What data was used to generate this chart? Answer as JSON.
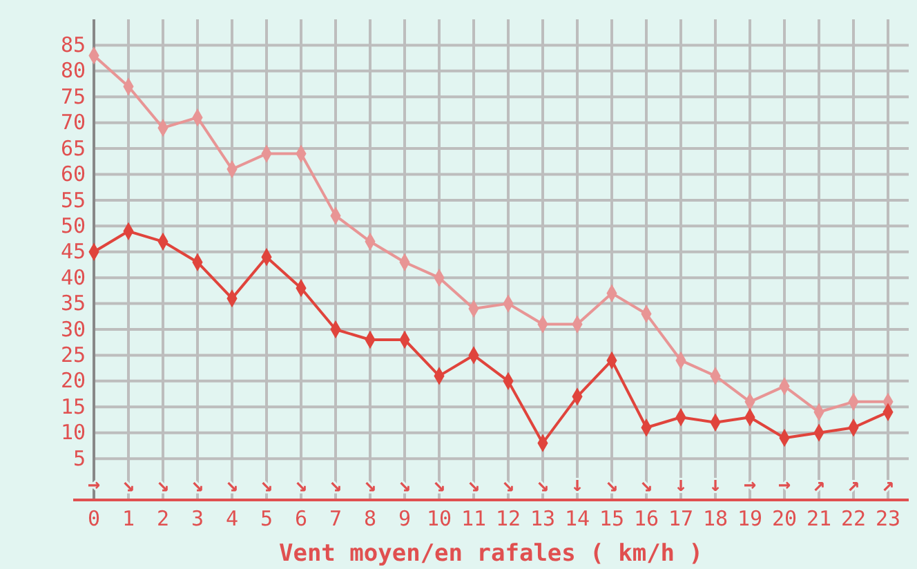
{
  "chart_data": {
    "type": "line",
    "xlabel": "Vent moyen/en rafales ( km/h )",
    "x": [
      0,
      1,
      2,
      3,
      4,
      5,
      6,
      7,
      8,
      9,
      10,
      11,
      12,
      13,
      14,
      15,
      16,
      17,
      18,
      19,
      20,
      21,
      22,
      23
    ],
    "series": [
      {
        "color": "#e89595",
        "values": [
          83,
          77,
          69,
          71,
          61,
          64,
          64,
          52,
          47,
          43,
          40,
          34,
          35,
          31,
          31,
          37,
          33,
          24,
          21,
          16,
          19,
          14,
          16,
          16
        ]
      },
      {
        "color": "#e0443c",
        "values": [
          45,
          49,
          47,
          43,
          36,
          44,
          38,
          30,
          28,
          28,
          21,
          25,
          20,
          8,
          17,
          24,
          11,
          13,
          12,
          13,
          9,
          10,
          11,
          14
        ]
      }
    ],
    "xlim": [
      -0.6,
      23.6
    ],
    "ylim": [
      -3,
      90
    ],
    "xticks": [
      0,
      1,
      2,
      3,
      4,
      5,
      6,
      7,
      8,
      9,
      10,
      11,
      12,
      13,
      14,
      15,
      16,
      17,
      18,
      19,
      20,
      21,
      22,
      23
    ],
    "yticks": [
      5,
      10,
      15,
      20,
      25,
      30,
      35,
      40,
      45,
      50,
      55,
      60,
      65,
      70,
      75,
      80,
      85
    ],
    "grid": true,
    "marker": "diamond",
    "line_style": "solid",
    "annotations": [
      "→",
      "↘",
      "↘",
      "↘",
      "↘",
      "↘",
      "↘",
      "↘",
      "↘",
      "↘",
      "↘",
      "↘",
      "↘",
      "↘",
      "↓",
      "↘",
      "↘",
      "↓",
      "↓",
      "→",
      "→",
      "↗",
      "↗",
      "↗"
    ]
  }
}
